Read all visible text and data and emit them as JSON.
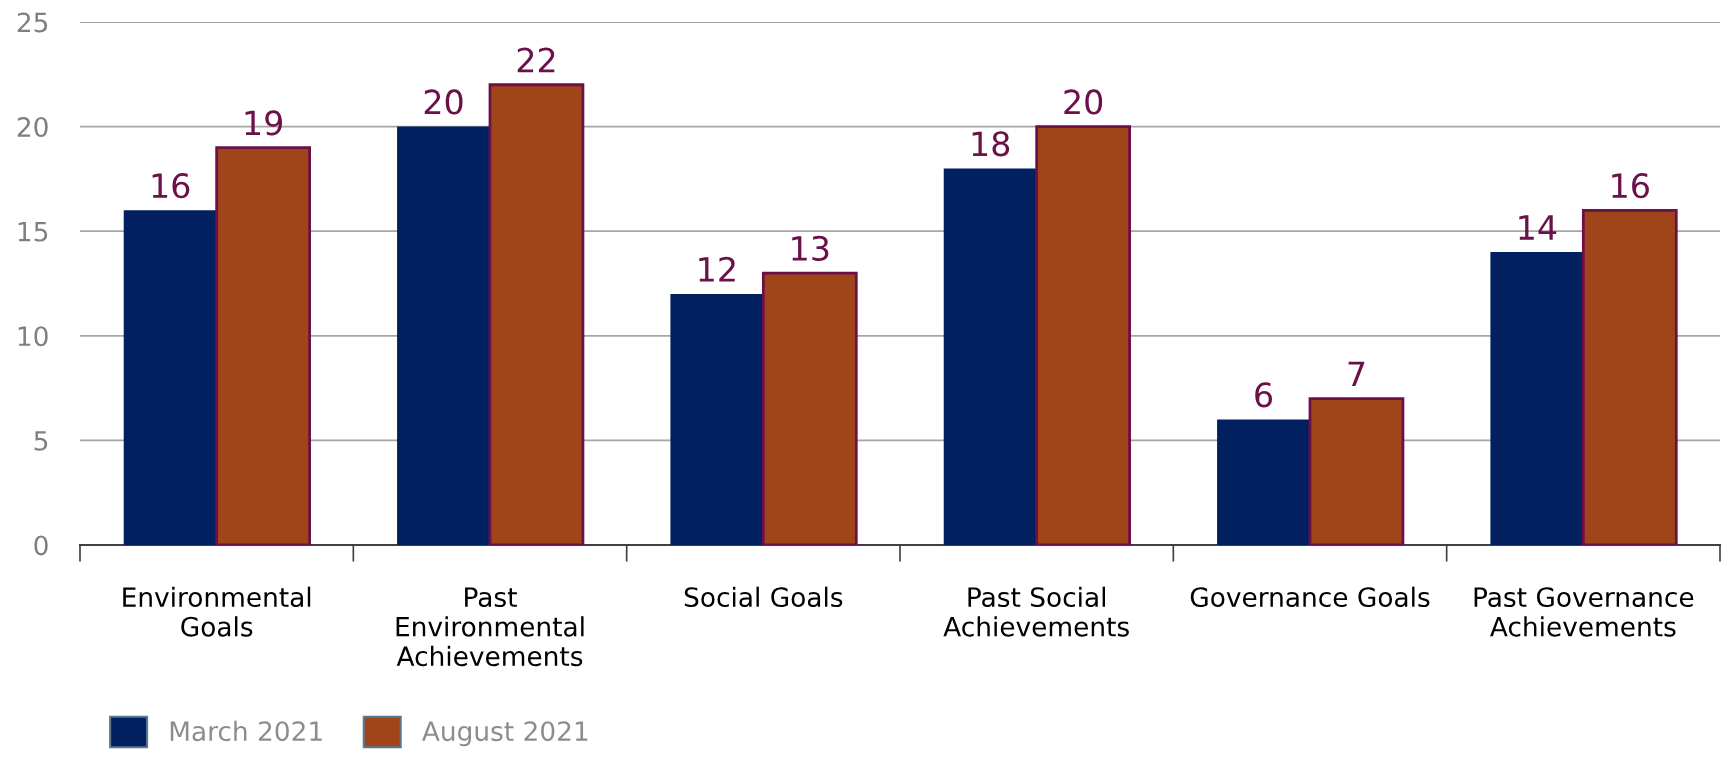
{
  "chart_data": {
    "type": "bar",
    "categories": [
      "Environmental Goals",
      "Past Environmental Achievements",
      "Social Goals",
      "Past Social Achievements",
      "Governance Goals",
      "Past Governance Achievements"
    ],
    "series": [
      {
        "name": "March 2021",
        "color": "#002060",
        "values": [
          16,
          20,
          12,
          18,
          6,
          14
        ]
      },
      {
        "name": "August 2021",
        "color": "#a0451a",
        "values": [
          19,
          22,
          13,
          20,
          7,
          16
        ]
      }
    ],
    "ylim": [
      0,
      25
    ],
    "yticks": [
      0,
      5,
      10,
      15,
      20,
      25
    ],
    "grid": "y",
    "legend": "bottom left",
    "data_labels": true
  }
}
